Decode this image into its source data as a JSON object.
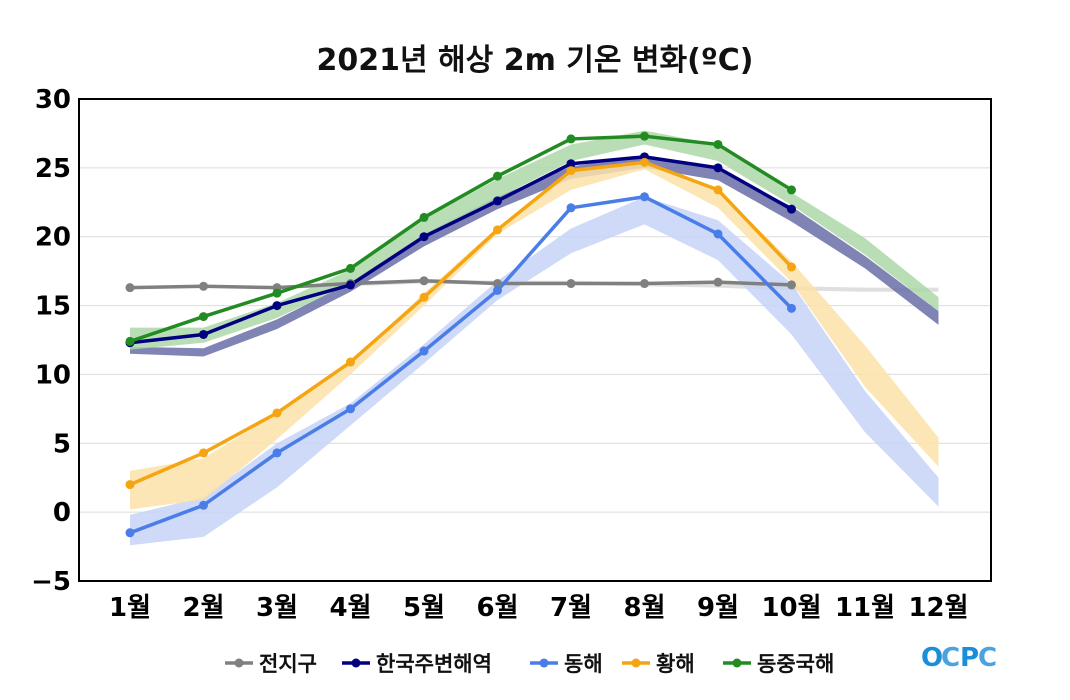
{
  "chart_data": {
    "type": "line",
    "title": "2021년 해상 2m 기온 변화(ºC)",
    "categories": [
      "1월",
      "2월",
      "3월",
      "4월",
      "5월",
      "6월",
      "7월",
      "8월",
      "9월",
      "10월",
      "11월",
      "12월"
    ],
    "ylim": [
      -5,
      30
    ],
    "yticks": [
      "30",
      "25",
      "20",
      "15",
      "10",
      "5",
      "0",
      "−5"
    ],
    "ytick_values": [
      30,
      25,
      20,
      15,
      10,
      5,
      0,
      -5
    ],
    "grid": true,
    "legend_position": "bottom",
    "series": [
      {
        "name": "전지구",
        "color": "#808080",
        "band_color": "#d9d9d9",
        "values": [
          16.3,
          16.4,
          16.3,
          16.6,
          16.8,
          16.6,
          16.6,
          16.6,
          16.7,
          16.5,
          null,
          null
        ],
        "band_low": [
          16.2,
          16.3,
          16.2,
          16.4,
          16.6,
          16.5,
          16.5,
          16.4,
          16.3,
          16.1,
          16.0,
          16.0
        ],
        "band_high": [
          16.4,
          16.5,
          16.4,
          16.7,
          16.9,
          16.8,
          16.8,
          16.7,
          16.6,
          16.4,
          16.3,
          16.3
        ]
      },
      {
        "name": "한국주변해역",
        "color": "#000080",
        "band_color": "#6a6fa8",
        "values": [
          12.3,
          12.9,
          15.0,
          16.5,
          20.0,
          22.6,
          25.3,
          25.8,
          25.0,
          22.0,
          null,
          null
        ],
        "band_low": [
          11.5,
          11.3,
          13.3,
          16.0,
          19.3,
          22.0,
          24.2,
          25.0,
          24.1,
          21.1,
          17.7,
          13.6
        ],
        "band_high": [
          12.0,
          11.9,
          14.0,
          16.7,
          20.2,
          22.9,
          25.1,
          25.9,
          24.9,
          22.2,
          18.6,
          14.6
        ]
      },
      {
        "name": "동해",
        "color": "#4a7de8",
        "band_color": "#c5d3f7",
        "values": [
          -1.5,
          0.5,
          4.3,
          7.5,
          11.7,
          16.1,
          22.1,
          22.9,
          20.2,
          14.8,
          null,
          null
        ],
        "band_low": [
          -2.4,
          -1.8,
          1.8,
          6.3,
          10.8,
          15.4,
          18.8,
          20.9,
          18.3,
          12.9,
          5.8,
          0.4
        ],
        "band_high": [
          -0.2,
          1.1,
          5.0,
          7.9,
          12.2,
          16.8,
          20.6,
          22.9,
          21.2,
          16.6,
          8.8,
          2.5
        ]
      },
      {
        "name": "황해",
        "color": "#f5a511",
        "band_color": "#fde2a8",
        "values": [
          2.0,
          4.3,
          7.2,
          10.9,
          15.6,
          20.5,
          24.8,
          25.4,
          23.4,
          17.8,
          null,
          null
        ],
        "band_low": [
          0.2,
          0.9,
          5.3,
          10.0,
          15.0,
          20.2,
          23.4,
          24.9,
          22.1,
          16.7,
          9.1,
          3.3
        ],
        "band_high": [
          3.0,
          3.9,
          7.2,
          10.9,
          15.9,
          20.7,
          24.7,
          25.4,
          23.4,
          18.2,
          12.1,
          5.4
        ]
      },
      {
        "name": "동중국해",
        "color": "#228b22",
        "band_color": "#add8a9",
        "values": [
          12.4,
          14.2,
          15.9,
          17.7,
          21.4,
          24.4,
          27.1,
          27.3,
          26.7,
          23.4,
          null,
          null
        ],
        "band_low": [
          11.8,
          12.3,
          14.1,
          16.6,
          19.9,
          22.8,
          25.5,
          26.7,
          25.5,
          22.3,
          18.7,
          14.6
        ],
        "band_high": [
          13.4,
          13.4,
          15.2,
          17.6,
          21.3,
          24.2,
          26.7,
          27.7,
          26.7,
          23.2,
          19.9,
          15.6
        ]
      }
    ]
  },
  "logo": {
    "text": "OCPC",
    "colors": [
      "#1a8fd8",
      "#4aa3df",
      "#1a8fd8",
      "#4aa3df"
    ]
  }
}
